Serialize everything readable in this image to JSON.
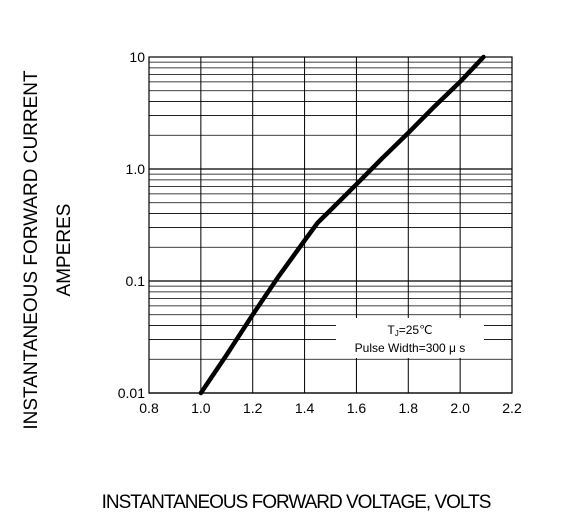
{
  "chart_data": {
    "type": "line",
    "title": "",
    "xlabel": "INSTANTANEOUS FORWARD VOLTAGE, VOLTS",
    "ylabel_lines": [
      "INSTANTANEOUS FORWARD CURRENT",
      "AMPERES"
    ],
    "xlim": [
      0.8,
      2.2
    ],
    "ylim": [
      0.01,
      10
    ],
    "yscale": "log",
    "grid": true,
    "x_ticks": [
      "0.8",
      "1.0",
      "1.2",
      "1.4",
      "1.6",
      "1.8",
      "2.0",
      "2.2"
    ],
    "y_ticks": [
      "0.01",
      "0.1",
      "1.0",
      "10"
    ],
    "series": [
      {
        "x": [
          1.0,
          1.1,
          1.2,
          1.3,
          1.4,
          1.45,
          1.5,
          1.6,
          1.7,
          1.8,
          1.9,
          2.0,
          2.09
        ],
        "y": [
          0.01,
          0.022,
          0.05,
          0.11,
          0.23,
          0.33,
          0.43,
          0.73,
          1.25,
          2.1,
          3.6,
          6.0,
          10.0
        ]
      }
    ],
    "annotation": {
      "line1_main": "T",
      "line1_sub": "J",
      "line1_rest": "=25℃",
      "line2": "Pulse Width=300 μ s"
    }
  }
}
